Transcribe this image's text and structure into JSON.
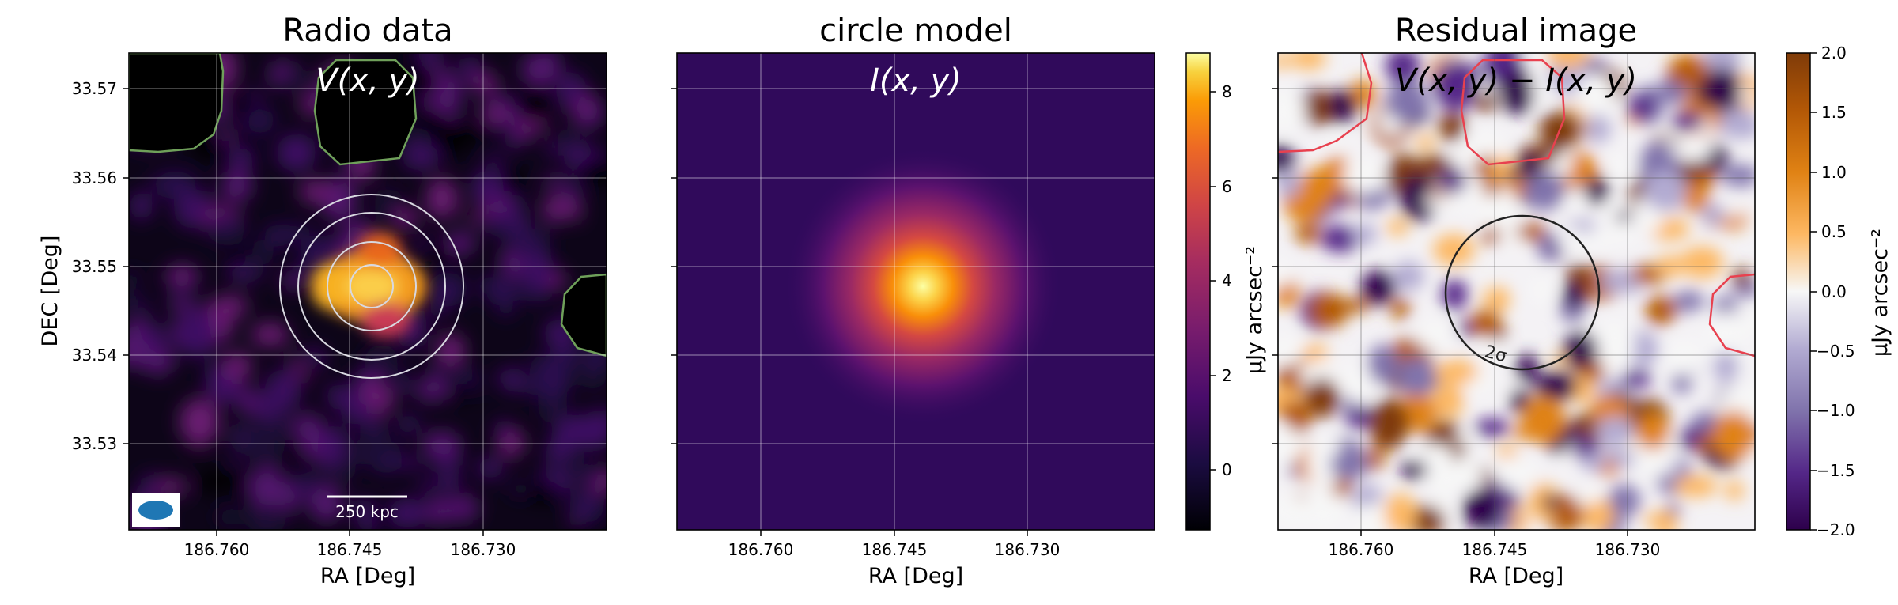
{
  "chart_data": [
    {
      "type": "heatmap",
      "title": "Radio data",
      "annotation": "V(x, y)",
      "xlabel": "RA [Deg]",
      "ylabel": "DEC [Deg]",
      "xticks": [
        "186.760",
        "186.745",
        "186.730"
      ],
      "yticks": [
        "33.57",
        "33.56",
        "33.55",
        "33.54",
        "33.53"
      ],
      "xlim": [
        186.7695,
        186.7155
      ],
      "ylim": [
        33.5207,
        33.5743
      ],
      "grid": true,
      "scalebar_label": "250 kpc",
      "beam_color": "#1f77b4",
      "colormap": "inferno",
      "contour_color": "#6fa05a",
      "ring_color": "#d8d8e0",
      "source_center": [
        186.7422,
        33.5476
      ]
    },
    {
      "type": "heatmap",
      "title": "circle model",
      "annotation": "I(x, y)",
      "xlabel": "RA [Deg]",
      "xticks": [
        "186.760",
        "186.745",
        "186.730"
      ],
      "xlim": [
        186.7695,
        186.7155
      ],
      "ylim": [
        33.5207,
        33.5743
      ],
      "grid": true,
      "colormap": "inferno",
      "colorbar": {
        "label": "μJy arcsec⁻²",
        "ticks": [
          "0",
          "2",
          "4",
          "6",
          "8"
        ],
        "range": [
          -1.3,
          8.8
        ]
      },
      "peak": 8.5
    },
    {
      "type": "heatmap",
      "title": "Residual image",
      "annotation": "V(x, y) − I(x, y)",
      "xlabel": "RA [Deg]",
      "xticks": [
        "186.760",
        "186.745",
        "186.730"
      ],
      "xlim": [
        186.7695,
        186.7155
      ],
      "ylim": [
        33.5207,
        33.5743
      ],
      "grid": true,
      "colormap": "PuOr_r",
      "circle_label": "2σ",
      "circle_color": "#222222",
      "mask_color": "#e8414f",
      "colorbar": {
        "label": "μJy arcsec⁻²",
        "ticks": [
          "2.0",
          "1.5",
          "1.0",
          "0.5",
          "0.0",
          "−0.5",
          "−1.0",
          "−1.5",
          "−2.0"
        ],
        "range": [
          -2.0,
          2.0
        ]
      }
    }
  ]
}
